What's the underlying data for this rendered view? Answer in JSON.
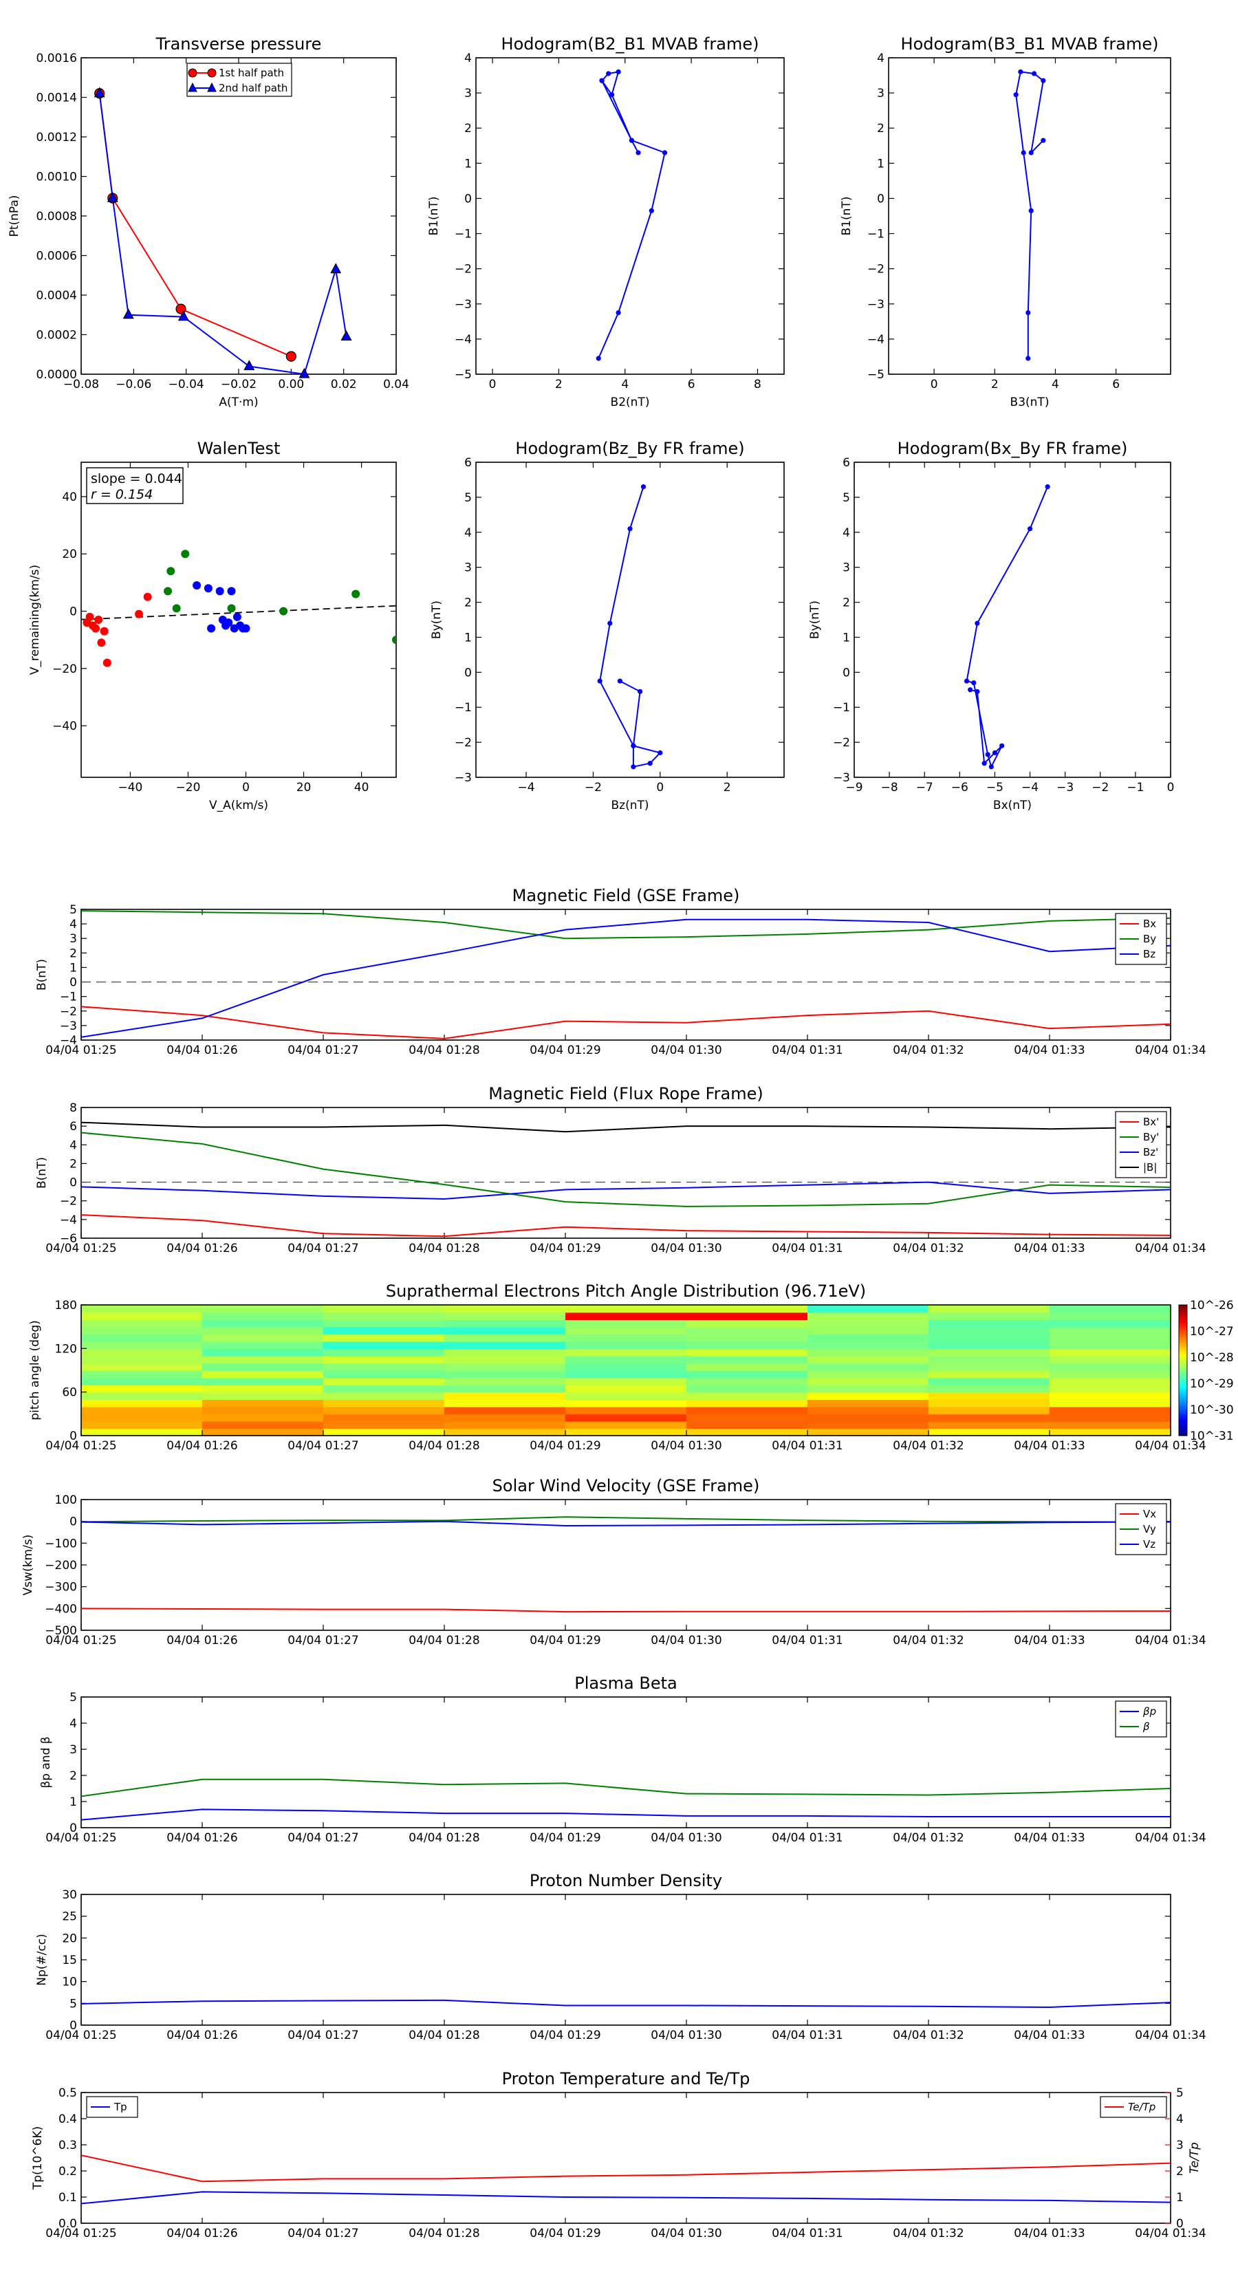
{
  "figure": {
    "times": [
      "04/04 01:25",
      "04/04 01:26",
      "04/04 01:27",
      "04/04 01:28",
      "04/04 01:29",
      "04/04 01:30",
      "04/04 01:31",
      "04/04 01:32",
      "04/04 01:33",
      "04/04 01:34"
    ]
  },
  "chart_data": [
    {
      "type": "line",
      "title": "Transverse pressure",
      "xlabel": "A(T·m)",
      "ylabel": "Pt(nPa)",
      "xlim": [
        -0.08,
        0.04
      ],
      "ylim": [
        0,
        0.0016
      ],
      "xticks": [
        "−0.08",
        "−0.06",
        "−0.04",
        "−0.02",
        "0.00",
        "0.02",
        "0.04"
      ],
      "yticks": [
        "0.0000",
        "0.0002",
        "0.0004",
        "0.0006",
        "0.0008",
        "0.0010",
        "0.0012",
        "0.0014",
        "0.0016"
      ],
      "legend": "top-center",
      "series": [
        {
          "name": "1st half path",
          "color": "#ff0000",
          "marker": "circle",
          "x": [
            -0.073,
            -0.068,
            -0.042,
            0.0
          ],
          "y": [
            0.00142,
            0.00089,
            0.00033,
            9e-05
          ]
        },
        {
          "name": "2nd half path",
          "color": "#0000ff",
          "marker": "triangle",
          "x": [
            -0.073,
            -0.068,
            -0.062,
            -0.041,
            -0.016,
            0.005,
            0.017,
            0.021
          ],
          "y": [
            0.00142,
            0.00089,
            0.0003,
            0.00029,
            4e-05,
            0.0,
            0.00053,
            0.00019
          ]
        }
      ]
    },
    {
      "type": "line",
      "title": "Hodogram(B2_B1 MVAB frame)",
      "xlabel": "B2(nT)",
      "ylabel": "B1(nT)",
      "xlim": [
        -0.5,
        8.8
      ],
      "ylim": [
        -5,
        4
      ],
      "xticks": [
        "0",
        "2",
        "4",
        "6",
        "8"
      ],
      "yticks": [
        "−5",
        "−4",
        "−3",
        "−2",
        "−1",
        "0",
        "1",
        "2",
        "3",
        "4"
      ],
      "series": [
        {
          "color": "#0000ff",
          "marker": "dot",
          "x": [
            3.2,
            3.8,
            4.8,
            5.2,
            4.2,
            3.6,
            3.3,
            3.5,
            3.8,
            3.6,
            3.3,
            4.2,
            4.4
          ],
          "y": [
            -4.55,
            -3.25,
            -0.35,
            1.3,
            1.65,
            2.95,
            3.35,
            3.55,
            3.6,
            2.95,
            3.35,
            1.65,
            1.3
          ]
        }
      ]
    },
    {
      "type": "line",
      "title": "Hodogram(B3_B1 MVAB frame)",
      "xlabel": "B3(nT)",
      "ylabel": "B1(nT)",
      "xlim": [
        -1.5,
        7.8
      ],
      "ylim": [
        -5,
        4
      ],
      "xticks": [
        "0",
        "2",
        "4",
        "6"
      ],
      "yticks": [
        "−5",
        "−4",
        "−3",
        "−2",
        "−1",
        "0",
        "1",
        "2",
        "3",
        "4"
      ],
      "series": [
        {
          "color": "#0000ff",
          "marker": "dot",
          "x": [
            3.1,
            3.1,
            3.2,
            2.95,
            2.7,
            2.85,
            3.3,
            3.6,
            3.2,
            3.6
          ],
          "y": [
            -4.55,
            -3.25,
            -0.35,
            1.3,
            2.95,
            3.6,
            3.55,
            3.35,
            1.3,
            1.65
          ]
        }
      ]
    },
    {
      "type": "scatter",
      "title": "WalenTest",
      "xlabel": "V_A(km/s)",
      "ylabel": "V_remaining(km/s)",
      "xlim": [
        -57,
        52
      ],
      "ylim": [
        -58,
        52
      ],
      "xticks": [
        "−40",
        "−20",
        "0",
        "20",
        "40"
      ],
      "yticks": [
        "−40",
        "−20",
        "0",
        "20",
        "40"
      ],
      "annotation": {
        "slope": "slope = 0.044",
        "r": "r = 0.154"
      },
      "fit": {
        "slope": 0.044,
        "intercept": -0.4
      },
      "series": [
        {
          "color": "#ff0000",
          "x": [
            -55,
            -54,
            -53,
            -52,
            -51,
            -50,
            -49,
            -48,
            -37,
            -34
          ],
          "y": [
            -4,
            -2,
            -5,
            -6,
            -3,
            -11,
            -7,
            -18,
            -1,
            5
          ]
        },
        {
          "color": "#008000",
          "x": [
            -27,
            -26,
            -24,
            -21,
            -5,
            13,
            38,
            52
          ],
          "y": [
            7,
            14,
            1,
            20,
            1,
            0,
            6,
            -10
          ]
        },
        {
          "color": "#0000ff",
          "x": [
            -17,
            -13,
            -12,
            -9,
            -8,
            -7,
            -6,
            -5,
            -4,
            -3,
            -2,
            -1,
            0
          ],
          "y": [
            9,
            8,
            -6,
            7,
            -3,
            -5,
            -4,
            7,
            -6,
            -2,
            -5,
            -6,
            -6
          ]
        }
      ]
    },
    {
      "type": "line",
      "title": "Hodogram(Bz_By FR frame)",
      "xlabel": "Bz(nT)",
      "ylabel": "By(nT)",
      "xlim": [
        -5.5,
        3.7
      ],
      "ylim": [
        -3,
        6
      ],
      "xticks": [
        "−4",
        "−2",
        "0",
        "2"
      ],
      "yticks": [
        "−3",
        "−2",
        "−1",
        "0",
        "1",
        "2",
        "3",
        "4",
        "5",
        "6"
      ],
      "series": [
        {
          "color": "#0000ff",
          "marker": "dot",
          "x": [
            -0.5,
            -0.9,
            -1.5,
            -1.8,
            -0.8,
            -0.8,
            -0.3,
            0.0,
            -0.8,
            -0.6,
            -1.2
          ],
          "y": [
            5.3,
            4.1,
            1.4,
            -0.25,
            -2.1,
            -2.7,
            -2.6,
            -2.3,
            -2.1,
            -0.55,
            -0.25
          ]
        }
      ]
    },
    {
      "type": "line",
      "title": "Hodogram(Bx_By FR frame)",
      "xlabel": "Bx(nT)",
      "ylabel": "By(nT)",
      "xlim": [
        -9,
        0
      ],
      "ylim": [
        -3,
        6
      ],
      "xticks": [
        "−9",
        "−8",
        "−7",
        "−6",
        "−5",
        "−4",
        "−3",
        "−2",
        "−1",
        "0"
      ],
      "yticks": [
        "−3",
        "−2",
        "−1",
        "0",
        "1",
        "2",
        "3",
        "4",
        "5",
        "6"
      ],
      "series": [
        {
          "color": "#0000ff",
          "marker": "dot",
          "x": [
            -3.5,
            -4.0,
            -5.5,
            -5.8,
            -5.6,
            -5.2,
            -5.1,
            -4.8,
            -5.0,
            -5.3,
            -5.5,
            -5.7
          ],
          "y": [
            5.3,
            4.1,
            1.4,
            -0.25,
            -0.3,
            -2.35,
            -2.7,
            -2.1,
            -2.3,
            -2.6,
            -0.55,
            -0.5
          ]
        }
      ]
    },
    {
      "type": "line",
      "title": "Magnetic Field (GSE Frame)",
      "ylabel": "B(nT)",
      "ylim": [
        -4,
        5
      ],
      "yticks": [
        "−4",
        "−3",
        "−2",
        "−1",
        "0",
        "1",
        "2",
        "3",
        "4",
        "5"
      ],
      "legend": "top-right",
      "series": [
        {
          "name": "Bx",
          "color": "#ff0000",
          "values": [
            -1.7,
            -2.3,
            -3.5,
            -3.9,
            -2.7,
            -2.8,
            -2.3,
            -2.0,
            -3.2,
            -2.9
          ]
        },
        {
          "name": "By",
          "color": "#008000",
          "values": [
            4.9,
            4.8,
            4.7,
            4.1,
            3.0,
            3.1,
            3.3,
            3.6,
            4.2,
            4.4
          ]
        },
        {
          "name": "Bz",
          "color": "#0000ff",
          "values": [
            -3.8,
            -2.5,
            0.5,
            2.0,
            3.6,
            4.3,
            4.3,
            4.1,
            2.1,
            2.5
          ]
        }
      ]
    },
    {
      "type": "line",
      "title": "Magnetic Field (Flux Rope Frame)",
      "ylabel": "B(nT)",
      "ylim": [
        -6,
        8
      ],
      "yticks": [
        "−6",
        "−4",
        "−2",
        "0",
        "2",
        "4",
        "6",
        "8"
      ],
      "legend": "top-right",
      "series": [
        {
          "name": "Bx'",
          "color": "#ff0000",
          "values": [
            -3.5,
            -4.1,
            -5.5,
            -5.8,
            -4.8,
            -5.2,
            -5.3,
            -5.4,
            -5.6,
            -5.7
          ]
        },
        {
          "name": "By'",
          "color": "#008000",
          "values": [
            5.3,
            4.1,
            1.4,
            -0.25,
            -2.1,
            -2.6,
            -2.5,
            -2.3,
            -0.3,
            -0.55
          ]
        },
        {
          "name": "Bz'",
          "color": "#0000ff",
          "values": [
            -0.5,
            -0.9,
            -1.5,
            -1.8,
            -0.8,
            -0.6,
            -0.3,
            0.0,
            -1.2,
            -0.8
          ]
        },
        {
          "name": "|B|",
          "color": "#000000",
          "values": [
            6.4,
            5.9,
            5.9,
            6.1,
            5.4,
            6.0,
            6.0,
            5.9,
            5.7,
            5.9
          ]
        }
      ]
    },
    {
      "type": "heatmap",
      "title": "Suprathermal Electrons Pitch Angle Distribution (96.71eV)",
      "ylabel": "pitch angle (deg)",
      "ylim": [
        0,
        180
      ],
      "yticks": [
        "0",
        "60",
        "120",
        "180"
      ],
      "colorbar": {
        "ticks": [
          "10^-26",
          "10^-27",
          "10^-28",
          "10^-29",
          "10^-30",
          "10^-31"
        ],
        "log_min": -31,
        "log_max": -26
      }
    },
    {
      "type": "line",
      "title": "Solar Wind Velocity (GSE Frame)",
      "ylabel": "Vsw(km/s)",
      "ylim": [
        -500,
        100
      ],
      "yticks": [
        "−500",
        "−400",
        "−300",
        "−200",
        "−100",
        "0",
        "100"
      ],
      "legend": "top-right",
      "series": [
        {
          "name": "Vx",
          "color": "#ff0000",
          "values": [
            -400,
            -402,
            -404,
            -404,
            -415,
            -414,
            -414,
            -414,
            -413,
            -412
          ]
        },
        {
          "name": "Vy",
          "color": "#008000",
          "values": [
            -2,
            2,
            5,
            4,
            20,
            12,
            5,
            0,
            -2,
            -3
          ]
        },
        {
          "name": "Vz",
          "color": "#0000ff",
          "values": [
            -3,
            -15,
            -8,
            0,
            -20,
            -18,
            -15,
            -10,
            -5,
            -2
          ]
        }
      ]
    },
    {
      "type": "line",
      "title": "Plasma Beta",
      "ylabel": "βp and β",
      "ylim": [
        0,
        5
      ],
      "yticks": [
        "0",
        "1",
        "2",
        "3",
        "4",
        "5"
      ],
      "legend": "top-right",
      "series": [
        {
          "name": "βp",
          "color": "#0000ff",
          "values": [
            0.3,
            0.7,
            0.65,
            0.55,
            0.55,
            0.45,
            0.45,
            0.42,
            0.42,
            0.42
          ]
        },
        {
          "name": "β",
          "color": "#008000",
          "values": [
            1.2,
            1.85,
            1.85,
            1.65,
            1.7,
            1.3,
            1.28,
            1.25,
            1.35,
            1.5
          ]
        }
      ]
    },
    {
      "type": "line",
      "title": "Proton Number Density",
      "ylabel": "Np(#/cc)",
      "ylim": [
        0,
        30
      ],
      "yticks": [
        "0",
        "5",
        "10",
        "15",
        "20",
        "25",
        "30"
      ],
      "series": [
        {
          "name": "Np",
          "color": "#0000ff",
          "values": [
            4.9,
            5.5,
            5.6,
            5.7,
            4.5,
            4.5,
            4.4,
            4.3,
            4.1,
            5.2
          ]
        }
      ]
    },
    {
      "type": "line",
      "title": "Proton Temperature and Te/Tp",
      "ylabel": "Tp(10^6K)",
      "ylabel_right": "Te/Tp",
      "ylim": [
        0,
        0.5
      ],
      "ylim_right": [
        0,
        5
      ],
      "yticks": [
        "0.0",
        "0.1",
        "0.2",
        "0.3",
        "0.4",
        "0.5"
      ],
      "yticks_right": [
        "0",
        "1",
        "2",
        "3",
        "4",
        "5"
      ],
      "legend": [
        "top-left",
        "top-right"
      ],
      "series": [
        {
          "name": "Tp",
          "color": "#0000ff",
          "axis": "left",
          "values": [
            0.075,
            0.12,
            0.115,
            0.108,
            0.1,
            0.098,
            0.095,
            0.09,
            0.087,
            0.08
          ]
        },
        {
          "name": "Te/Tp",
          "color": "#ff0000",
          "axis": "right",
          "values": [
            2.6,
            1.6,
            1.7,
            1.7,
            1.8,
            1.85,
            1.95,
            2.05,
            2.15,
            2.3
          ]
        }
      ]
    }
  ]
}
